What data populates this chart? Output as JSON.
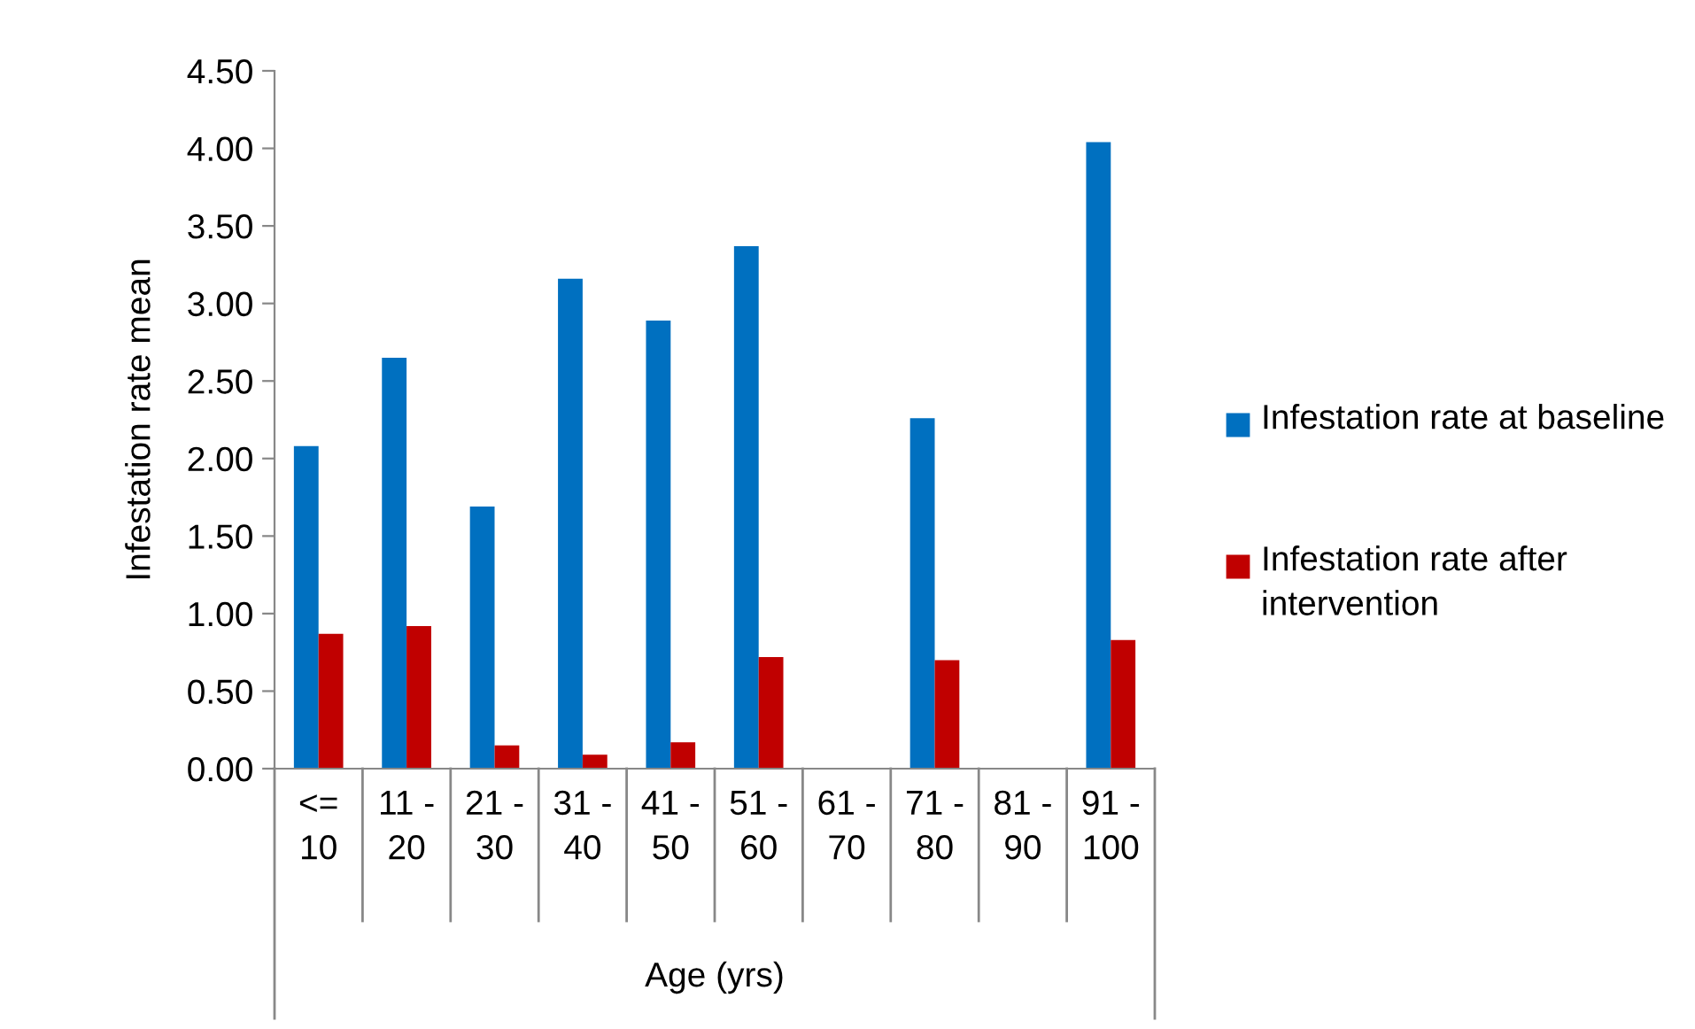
{
  "chart_data": {
    "type": "bar",
    "xlabel": "Age (yrs)",
    "ylabel": "Infestation rate mean",
    "categories": [
      "<= 10",
      "11 - 20",
      "21 - 30",
      "31 - 40",
      "41 - 50",
      "51 - 60",
      "61 - 70",
      "71 - 80",
      "81 - 90",
      "91 - 100"
    ],
    "series": [
      {
        "name": "Infestation rate at baseline",
        "color": "#0070c0",
        "values": [
          2.08,
          2.65,
          1.69,
          3.16,
          2.89,
          3.37,
          null,
          2.26,
          null,
          4.04
        ]
      },
      {
        "name": "Infestation rate after intervention",
        "color": "#c00000",
        "values": [
          0.87,
          0.92,
          0.15,
          0.09,
          0.17,
          0.72,
          null,
          0.7,
          null,
          0.83
        ]
      }
    ],
    "ylim": [
      0,
      4.5
    ],
    "yticks": [
      {
        "value": 0,
        "label": "0.00"
      },
      {
        "value": 0.5,
        "label": "0.50"
      },
      {
        "value": 1,
        "label": "1.00"
      },
      {
        "value": 1.5,
        "label": "1.50"
      },
      {
        "value": 2,
        "label": "2.00"
      },
      {
        "value": 2.5,
        "label": "2.50"
      },
      {
        "value": 3,
        "label": "3.00"
      },
      {
        "value": 3.5,
        "label": "3.50"
      },
      {
        "value": 4,
        "label": "4.00"
      },
      {
        "value": 4.5,
        "label": "4.50"
      }
    ],
    "grid": false,
    "legend": "right"
  }
}
